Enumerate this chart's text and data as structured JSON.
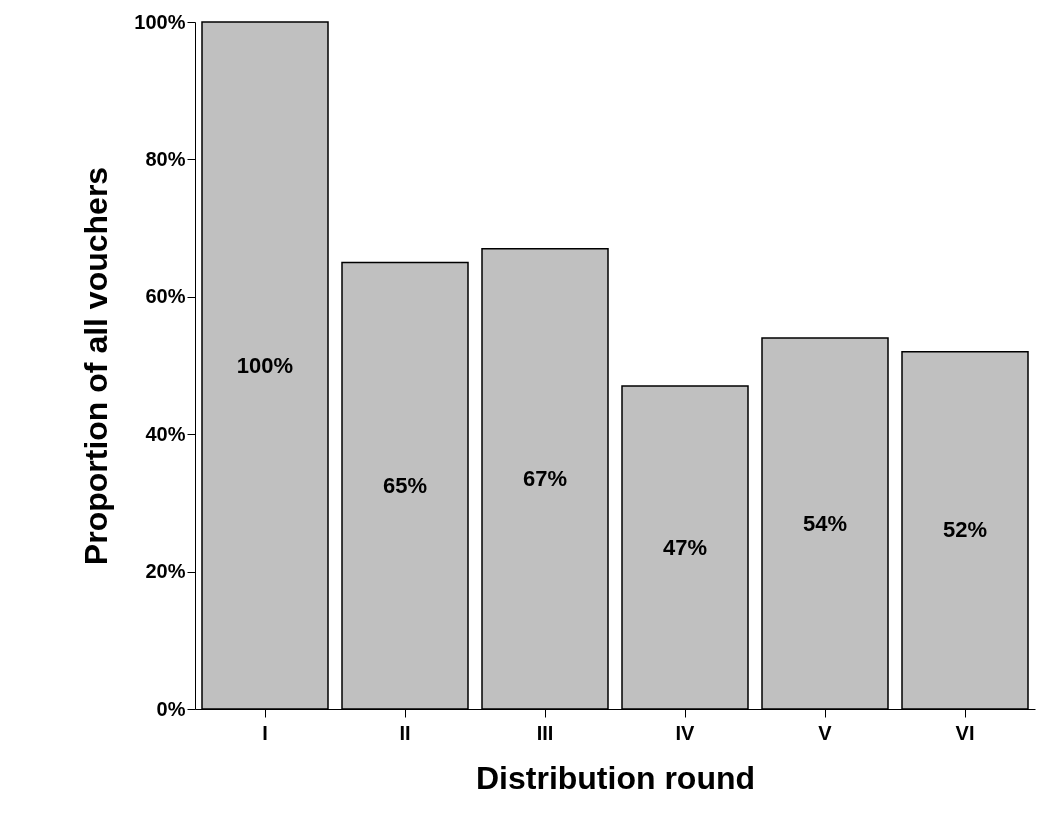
{
  "chart_data": {
    "type": "bar",
    "xlabel": "Distribution round",
    "ylabel": "Proportion of all vouchers",
    "categories": [
      "I",
      "II",
      "III",
      "IV",
      "V",
      "VI"
    ],
    "values": [
      100,
      65,
      67,
      47,
      54,
      52
    ],
    "value_labels": [
      "100%",
      "65%",
      "67%",
      "47%",
      "54%",
      "52%"
    ],
    "color": "#c0c0c0",
    "ylim": [
      0,
      100
    ],
    "yticks": [
      {
        "value": 0,
        "label": "0%"
      },
      {
        "value": 20,
        "label": "20%"
      },
      {
        "value": 40,
        "label": "40%"
      },
      {
        "value": 60,
        "label": "60%"
      },
      {
        "value": 80,
        "label": "80%"
      },
      {
        "value": 100,
        "label": "100%"
      }
    ],
    "grid": false
  }
}
